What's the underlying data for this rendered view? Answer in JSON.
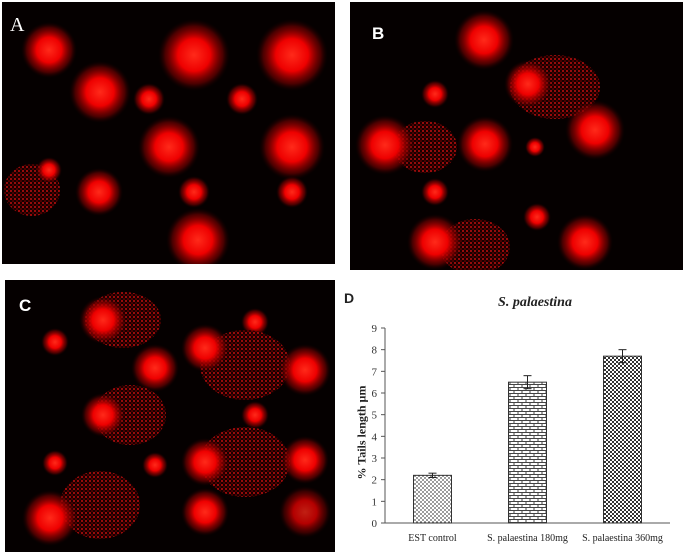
{
  "panels": {
    "a": {
      "label": "A"
    },
    "b": {
      "label": "B"
    },
    "c": {
      "label": "C"
    },
    "d": {
      "label": "D"
    }
  },
  "chart_data": {
    "type": "bar",
    "title": "S. palaestina",
    "xlabel": "",
    "ylabel": "% Tails length µm",
    "categories": [
      "EST control",
      "S. palaestina 180mg",
      "S. palaestina 360mg"
    ],
    "values": [
      2.2,
      6.5,
      7.7
    ],
    "errors": [
      0.1,
      0.3,
      0.3
    ],
    "ylim": [
      0,
      9
    ],
    "yticks": [
      0,
      1,
      2,
      3,
      4,
      5,
      6,
      7,
      8,
      9
    ],
    "grid": false,
    "legend": "none",
    "bar_patterns": [
      "dots",
      "brick",
      "checker"
    ]
  }
}
